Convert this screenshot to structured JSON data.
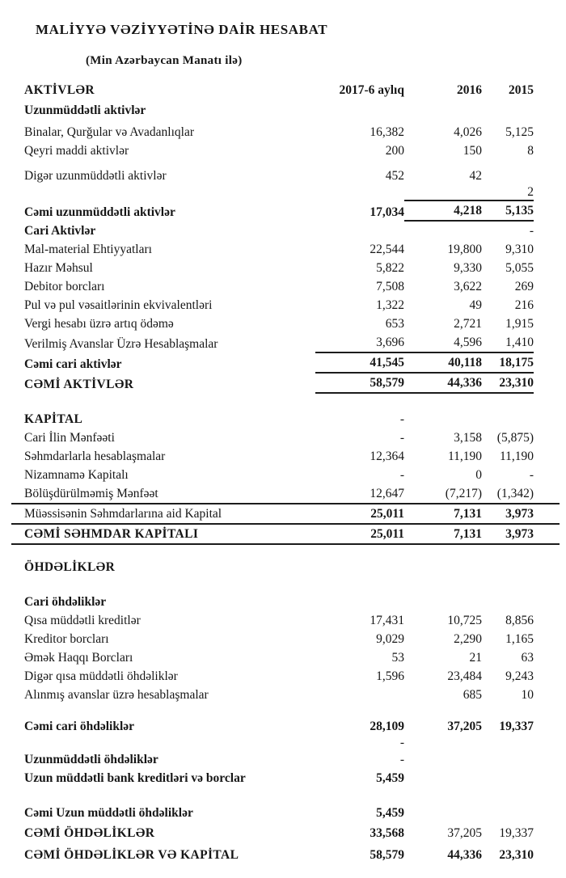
{
  "document": {
    "title": "MALİYYƏ VƏZİYYƏTİNƏ DAİR HESABAT",
    "subtitle": "(Min Azərbaycan Manatı ilə)",
    "header": {
      "section": "AKTİVLƏR",
      "columns": [
        "2017-6 aylıq",
        "2016",
        "2015"
      ]
    },
    "rows": [
      {
        "label": "Uzunmüddətli aktivlər",
        "bold": true,
        "values": [
          "",
          "",
          ""
        ],
        "mt": 2
      },
      {
        "label": "Binalar, Qurğular və Avadanlıqlar",
        "values": [
          "16,382",
          "4,026",
          "5,125"
        ],
        "mt": 4
      },
      {
        "label": "Qeyri maddi aktivlər",
        "values": [
          "200",
          "150",
          "8"
        ]
      },
      {
        "label": "Digər uzunmüddətli aktivlər",
        "values": [
          "452",
          "42",
          ""
        ],
        "mt": 8
      },
      {
        "label": "",
        "values": [
          "",
          "",
          "2"
        ],
        "rule": "c23",
        "small": true
      },
      {
        "label": "Cəmi uzunmüddətli aktivlər",
        "bold": true,
        "values": [
          "17,034",
          "4,218",
          "5,135"
        ],
        "values_bold": [
          true,
          true,
          true
        ],
        "rule": "c23"
      },
      {
        "label": "Cari Aktivlər",
        "bold": true,
        "values": [
          "",
          "",
          "-"
        ]
      },
      {
        "label": "Mal-material Ehtiyyatları",
        "values": [
          "22,544",
          "19,800",
          "9,310"
        ]
      },
      {
        "label": "Hazır Məhsul",
        "values": [
          "5,822",
          "9,330",
          "5,055"
        ]
      },
      {
        "label": "Debitor borcları",
        "values": [
          "7,508",
          "3,622",
          "269"
        ]
      },
      {
        "label": "Pul və pul vəsaitlərinin ekvivalentləri",
        "values": [
          "1,322",
          "49",
          "216"
        ]
      },
      {
        "label": "Vergi hesabı üzrə artıq ödəmə",
        "values": [
          "653",
          "2,721",
          "1,915"
        ]
      },
      {
        "label": "Verilmiş Avanslar Üzrə Hesablaşmalar",
        "values": [
          "3,696",
          "4,596",
          "1,410"
        ],
        "rule": "c123"
      },
      {
        "label": "Cəmi cari aktivlər",
        "bold": true,
        "values": [
          "41,545",
          "40,118",
          "18,175"
        ],
        "values_bold": [
          true,
          true,
          true
        ],
        "rule": "c123"
      },
      {
        "label": "CƏMİ AKTİVLƏR",
        "bold": true,
        "caps": true,
        "values": [
          "58,579",
          "44,336",
          "23,310"
        ],
        "values_bold": [
          true,
          true,
          true
        ],
        "rule": "c123"
      },
      {
        "label": "KAPİTAL",
        "bold": true,
        "caps": true,
        "values": [
          "-",
          "",
          ""
        ],
        "mt": 20
      },
      {
        "label": "Cari İlin Mənfəəti",
        "values": [
          "-",
          "3,158",
          "(5,875)"
        ]
      },
      {
        "label": "Səhmdarlarla hesablaşmalar",
        "values": [
          "12,364",
          "11,190",
          "11,190"
        ]
      },
      {
        "label": "Nizamnamə Kapitalı",
        "values": [
          "-",
          "0",
          "-"
        ]
      },
      {
        "label": "Bölüşdürülməmiş Mənfəət",
        "values": [
          "12,647",
          "(7,217)",
          "(1,342)"
        ],
        "rule": "full"
      },
      {
        "label": "Müəssisənin Səhmdarlarına aid Kapital",
        "values": [
          "25,011",
          "7,131",
          "3,973"
        ],
        "values_bold": [
          true,
          true,
          true
        ],
        "rule": "full"
      },
      {
        "label": "CƏMİ SƏHMDAR KAPİTALI",
        "bold": true,
        "caps": true,
        "values": [
          "25,011",
          "7,131",
          "3,973"
        ],
        "values_bold": [
          true,
          true,
          true
        ],
        "rule": "full"
      },
      {
        "label": "ÖHDƏLİKLƏR",
        "bold": true,
        "caps": true,
        "values": [
          "",
          "",
          ""
        ],
        "mt": 16
      },
      {
        "label": "Cari öhdəliklər",
        "bold": true,
        "values": [
          "",
          "",
          ""
        ],
        "mt": 20
      },
      {
        "label": "Qısa müddətli kreditlər",
        "values": [
          "17,431",
          "10,725",
          "8,856"
        ]
      },
      {
        "label": "Kreditor borcları",
        "values": [
          "9,029",
          "2,290",
          "1,165"
        ]
      },
      {
        "label": "Əmək Haqqı Borcları",
        "values": [
          "53",
          "21",
          "63"
        ]
      },
      {
        "label": "Digər qısa müddətli öhdəliklər",
        "values": [
          "1,596",
          "23,484",
          "9,243"
        ]
      },
      {
        "label": "Alınmış avanslar üzrə hesablaşmalar",
        "values": [
          "",
          "685",
          "10"
        ]
      },
      {
        "label": "Cəmi cari öhdəliklər",
        "bold": true,
        "values": [
          "28,109",
          "37,205",
          "19,337"
        ],
        "values_bold": [
          true,
          true,
          true
        ],
        "mt": 16
      },
      {
        "label": "",
        "values": [
          "-",
          "",
          ""
        ],
        "small": true
      },
      {
        "label": "Uzunmüddətli öhdəliklər",
        "bold": true,
        "values": [
          "-",
          "",
          ""
        ]
      },
      {
        "label": "Uzun müddətli bank kreditləri və borclar",
        "bold": true,
        "values": [
          "5,459",
          "",
          ""
        ],
        "values_bold": [
          true,
          false,
          false
        ]
      },
      {
        "label": "Cəmi Uzun müddətli öhdəliklər",
        "bold": true,
        "values": [
          "5,459",
          "",
          ""
        ],
        "values_bold": [
          true,
          false,
          false
        ],
        "mt": 20
      },
      {
        "label": "CƏMİ ÖHDƏLİKLƏR",
        "bold": true,
        "caps": true,
        "values": [
          "33,568",
          "37,205",
          "19,337"
        ],
        "values_bold": [
          true,
          false,
          false
        ],
        "mt": 2
      },
      {
        "label": "CƏMİ ÖHDƏLİKLƏR VƏ KAPİTAL",
        "bold": true,
        "caps": true,
        "values": [
          "58,579",
          "44,336",
          "23,310"
        ],
        "values_bold": [
          true,
          true,
          true
        ],
        "mt": 4
      }
    ]
  }
}
